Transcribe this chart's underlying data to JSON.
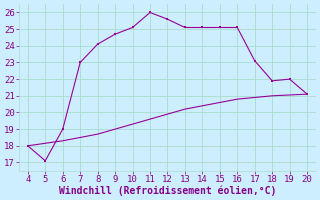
{
  "x_upper": [
    4,
    5,
    6,
    7,
    8,
    9,
    10,
    11,
    12,
    13,
    14,
    15,
    16,
    17,
    18,
    19,
    20
  ],
  "y_upper": [
    18.0,
    17.1,
    19.0,
    23.0,
    24.1,
    24.7,
    25.1,
    26.0,
    25.6,
    25.1,
    25.1,
    25.1,
    25.1,
    23.1,
    21.9,
    22.0,
    21.1
  ],
  "x_lower": [
    4,
    5,
    6,
    7,
    8,
    9,
    10,
    11,
    12,
    13,
    14,
    15,
    16,
    17,
    18,
    19,
    20
  ],
  "y_lower": [
    18.0,
    18.15,
    18.3,
    18.5,
    18.7,
    19.0,
    19.3,
    19.6,
    19.9,
    20.2,
    20.4,
    20.6,
    20.8,
    20.9,
    21.0,
    21.05,
    21.1
  ],
  "line_color": "#990099",
  "bg_color": "#cceeff",
  "grid_color": "#aaddcc",
  "xlabel": "Windchill (Refroidissement éolien,°C)",
  "xlabel_color": "#880088",
  "xlabel_fontsize": 7,
  "tick_color": "#880088",
  "tick_fontsize": 6.5,
  "xlim": [
    3.5,
    20.5
  ],
  "ylim": [
    16.5,
    26.5
  ],
  "yticks": [
    17,
    18,
    19,
    20,
    21,
    22,
    23,
    24,
    25,
    26
  ],
  "xticks": [
    4,
    5,
    6,
    7,
    8,
    9,
    10,
    11,
    12,
    13,
    14,
    15,
    16,
    17,
    18,
    19,
    20
  ]
}
